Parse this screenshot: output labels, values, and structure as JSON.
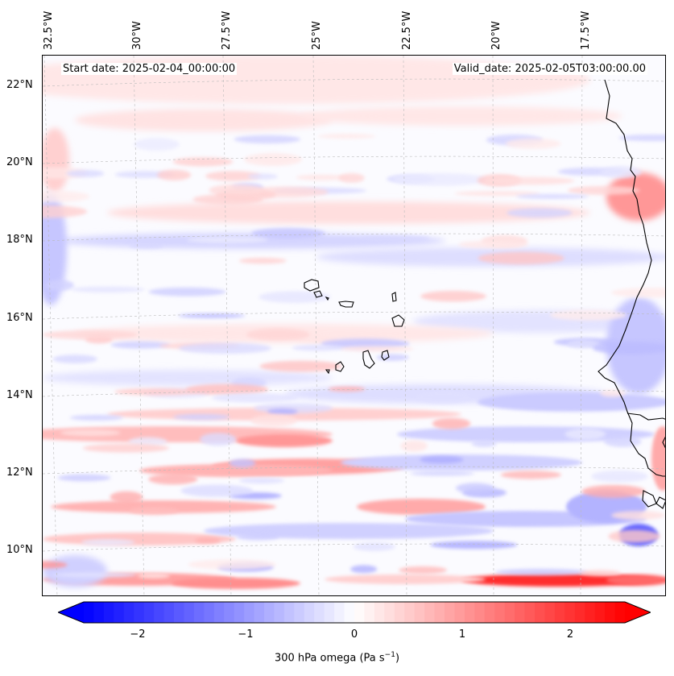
{
  "header": {
    "start_date": "Start date: 2025-02-04_00:00:00",
    "valid_date": "Valid_date: 2025-02-05T03:00:00.00"
  },
  "longitude_labels": [
    "32.5°W",
    "30°W",
    "27.5°W",
    "25°W",
    "22.5°W",
    "20°W",
    "17.5°W"
  ],
  "latitude_labels": [
    "22°N",
    "20°N",
    "18°N",
    "16°N",
    "14°N",
    "12°N",
    "10°N"
  ],
  "colorbar": {
    "ticks": [
      "−2",
      "−1",
      "0",
      "1",
      "2"
    ],
    "title_text": "300 hPa omega (Pa s",
    "title_sup": "−1",
    "title_end": ")",
    "range": [
      -2.7,
      2.7
    ]
  },
  "colors": {
    "negative": "#0000ff",
    "zero": "#ffffff",
    "positive": "#ff0000",
    "coast": "#000000"
  }
}
